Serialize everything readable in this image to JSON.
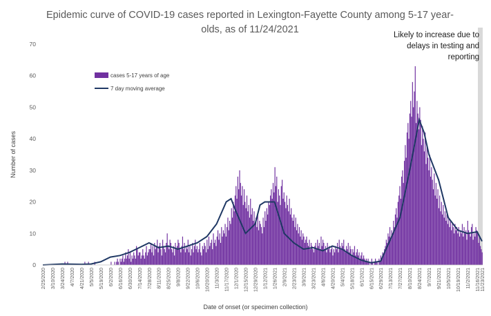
{
  "chart_data": {
    "type": "bar",
    "title_lines": [
      "Epidemic curve of COVID-19 cases reported in Lexington-Fayette County among 5-17 year-",
      "olds, as of 11/24/2021"
    ],
    "xlabel": "Date of onset (or specimen collection)",
    "ylabel": "Number of cases",
    "ylim": [
      0,
      70
    ],
    "yticks": [
      0,
      10,
      20,
      30,
      40,
      50,
      60,
      70
    ],
    "x_tick_labels": [
      "2/25/2020",
      "3/10/2020",
      "3/24/2020",
      "4/7/2020",
      "4/21/2020",
      "5/5/2020",
      "5/19/2020",
      "6/2/2020",
      "6/16/2020",
      "6/30/2020",
      "7/14/2020",
      "7/28/2020",
      "8/11/2020",
      "8/25/2020",
      "9/8/2020",
      "9/22/2020",
      "10/6/2020",
      "10/20/2020",
      "11/3/2020",
      "11/17/2020",
      "12/1/2020",
      "12/15/2020",
      "12/29/2020",
      "1/12/2021",
      "1/26/2021",
      "2/9/2021",
      "2/23/2021",
      "3/9/2021",
      "3/23/2021",
      "4/6/2021",
      "4/20/2021",
      "5/4/2021",
      "5/18/2021",
      "6/1/2021",
      "6/15/2021",
      "6/29/2021",
      "7/13/2021",
      "7/27/2021",
      "8/10/2021",
      "8/24/2021",
      "9/7/2021",
      "9/21/2021",
      "10/5/2021",
      "10/19/2021",
      "11/2/2021",
      "11/16/2021",
      "11/23/2021"
    ],
    "legend": [
      "cases 5-17 years of age",
      "7 day moving average"
    ],
    "legend_position": "upper-left",
    "bar_color": "#7030A0",
    "line_color": "#1F3864",
    "shade_color": "#D9D9D9",
    "annotation": [
      "Likely to increase due to",
      "delays in testing and",
      "reporting"
    ],
    "shaded_period": [
      "11/17/2021",
      "11/23/2021"
    ],
    "series": [
      {
        "name": "cases 5-17 years of age",
        "daily_values_from_start_to_end_approx": [
          0,
          0,
          0,
          0,
          0,
          0,
          0,
          0,
          0,
          0,
          0,
          0,
          0,
          0,
          0,
          0,
          0,
          0,
          0,
          0,
          0,
          0,
          0,
          0,
          1,
          0,
          0,
          1,
          0,
          0,
          0,
          0,
          0,
          0,
          0,
          0,
          0,
          0,
          0,
          0,
          0,
          0,
          0,
          0,
          0,
          0,
          1,
          0,
          0,
          0,
          1,
          0,
          0,
          0,
          0,
          0,
          0,
          1,
          0,
          0,
          0,
          0,
          0,
          0,
          0,
          0,
          0,
          0,
          0,
          0,
          0,
          0,
          0,
          0,
          0,
          1,
          0,
          0,
          0,
          1,
          0,
          1,
          2,
          1,
          0,
          2,
          1,
          2,
          3,
          1,
          2,
          4,
          2,
          3,
          5,
          2,
          4,
          1,
          3,
          2,
          4,
          3,
          2,
          6,
          5,
          3,
          4,
          4,
          2,
          3,
          5,
          3,
          2,
          4,
          6,
          3,
          4,
          5,
          5,
          7,
          4,
          6,
          3,
          7,
          5,
          6,
          8,
          4,
          6,
          7,
          5,
          3,
          8,
          6,
          5,
          4,
          7,
          10,
          6,
          5,
          8,
          7,
          5,
          4,
          6,
          3,
          7,
          5,
          6,
          8,
          7,
          5,
          4,
          6,
          9,
          5,
          7,
          4,
          6,
          5,
          8,
          4,
          6,
          3,
          5,
          7,
          4,
          6,
          8,
          5,
          6,
          4,
          5,
          7,
          4,
          3,
          6,
          5,
          7,
          6,
          4,
          8,
          5,
          9,
          6,
          7,
          8,
          5,
          10,
          7,
          8,
          6,
          9,
          11,
          8,
          10,
          7,
          12,
          9,
          11,
          10,
          13,
          9,
          12,
          15,
          11,
          14,
          13,
          18,
          15,
          20,
          17,
          22,
          25,
          21,
          28,
          24,
          30,
          26,
          22,
          25,
          19,
          24,
          20,
          18,
          22,
          17,
          19,
          15,
          21,
          16,
          18,
          14,
          17,
          13,
          15,
          12,
          16,
          11,
          14,
          13,
          12,
          10,
          15,
          12,
          17,
          14,
          18,
          16,
          20,
          19,
          22,
          24,
          21,
          26,
          23,
          31,
          25,
          28,
          20,
          24,
          22,
          19,
          25,
          27,
          21,
          23,
          20,
          18,
          22,
          19,
          17,
          21,
          16,
          18,
          15,
          14,
          16,
          12,
          15,
          11,
          13,
          10,
          12,
          9,
          11,
          8,
          10,
          9,
          7,
          8,
          9,
          7,
          6,
          8,
          5,
          7,
          6,
          5,
          4,
          6,
          7,
          5,
          8,
          6,
          7,
          5,
          9,
          6,
          8,
          7,
          5,
          6,
          4,
          7,
          5,
          6,
          4,
          5,
          6,
          3,
          5,
          4,
          6,
          5,
          7,
          4,
          8,
          6,
          5,
          7,
          6,
          8,
          5,
          4,
          6,
          5,
          7,
          4,
          6,
          5,
          3,
          5,
          4,
          6,
          3,
          4,
          5,
          3,
          4,
          2,
          3,
          4,
          2,
          3,
          2,
          1,
          2,
          1,
          2,
          1,
          0,
          1,
          2,
          1,
          0,
          1,
          2,
          1,
          1,
          0,
          2,
          1,
          3,
          2,
          4,
          3,
          5,
          6,
          8,
          7,
          10,
          9,
          12,
          8,
          11,
          10,
          14,
          12,
          16,
          18,
          15,
          20,
          22,
          25,
          21,
          28,
          30,
          26,
          33,
          38,
          34,
          42,
          45,
          40,
          48,
          52,
          47,
          58,
          50,
          55,
          63,
          45,
          52,
          48,
          43,
          50,
          46,
          38,
          44,
          40,
          36,
          42,
          32,
          38,
          34,
          30,
          35,
          28,
          31,
          27,
          24,
          29,
          22,
          26,
          21,
          24,
          18,
          22,
          17,
          20,
          16,
          19,
          15,
          17,
          14,
          16,
          13,
          15,
          12,
          14,
          11,
          13,
          12,
          10,
          13,
          11,
          12,
          10,
          12,
          9,
          11,
          10,
          13,
          9,
          12,
          10,
          11,
          8,
          14,
          11,
          10,
          9,
          12,
          13,
          8,
          10,
          9,
          12,
          11,
          10,
          7,
          9,
          6,
          5,
          4
        ],
        "note": "approximate daily counts read from the bars"
      },
      {
        "name": "7 day moving average",
        "anchor_points_approx": [
          [
            "2/25/2020",
            0
          ],
          [
            "3/24/2020",
            0.3
          ],
          [
            "4/21/2020",
            0.2
          ],
          [
            "5/5/2020",
            0.3
          ],
          [
            "5/19/2020",
            1
          ],
          [
            "6/2/2020",
            2.5
          ],
          [
            "6/16/2020",
            3
          ],
          [
            "6/30/2020",
            4
          ],
          [
            "7/14/2020",
            5.5
          ],
          [
            "7/28/2020",
            7
          ],
          [
            "8/11/2020",
            5.5
          ],
          [
            "8/25/2020",
            6
          ],
          [
            "9/8/2020",
            5
          ],
          [
            "9/22/2020",
            6
          ],
          [
            "10/6/2020",
            7
          ],
          [
            "10/20/2020",
            9
          ],
          [
            "11/3/2020",
            13
          ],
          [
            "11/17/2020",
            20
          ],
          [
            "11/24/2020",
            21
          ],
          [
            "12/1/2020",
            17
          ],
          [
            "12/15/2020",
            10
          ],
          [
            "12/29/2020",
            13
          ],
          [
            "1/5/2021",
            19
          ],
          [
            "1/12/2021",
            20
          ],
          [
            "1/26/2021",
            20
          ],
          [
            "2/9/2021",
            10
          ],
          [
            "2/23/2021",
            7
          ],
          [
            "3/9/2021",
            5
          ],
          [
            "3/23/2021",
            5.5
          ],
          [
            "4/6/2021",
            4.5
          ],
          [
            "4/20/2021",
            6
          ],
          [
            "5/4/2021",
            5
          ],
          [
            "5/18/2021",
            3
          ],
          [
            "6/1/2021",
            1.5
          ],
          [
            "6/15/2021",
            0.7
          ],
          [
            "6/29/2021",
            1.2
          ],
          [
            "7/13/2021",
            8
          ],
          [
            "7/27/2021",
            15
          ],
          [
            "8/10/2021",
            30
          ],
          [
            "8/24/2021",
            46
          ],
          [
            "8/31/2021",
            42
          ],
          [
            "9/7/2021",
            35
          ],
          [
            "9/21/2021",
            27
          ],
          [
            "10/5/2021",
            15
          ],
          [
            "10/19/2021",
            11
          ],
          [
            "11/2/2021",
            10
          ],
          [
            "11/16/2021",
            10.5
          ],
          [
            "11/23/2021",
            7.5
          ]
        ]
      }
    ]
  }
}
